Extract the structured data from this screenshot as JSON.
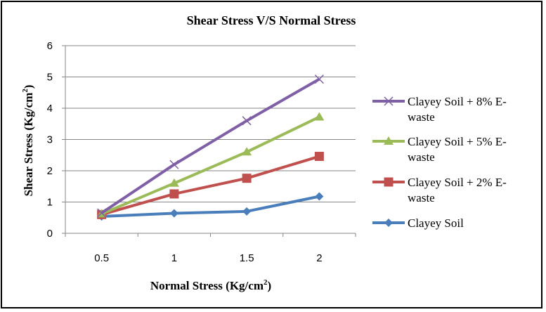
{
  "chart_data": {
    "type": "line",
    "title": "Shear Stress V/S Normal Stress",
    "xlabel": "Normal Stress (Kg/cm",
    "xlabel_sup": "2",
    "xlabel_end": ")",
    "ylabel": "Shear Stress (Kg/cm",
    "ylabel_sup": "2",
    "ylabel_end": ")",
    "x": [
      0.5,
      1,
      1.5,
      2
    ],
    "x_tick_labels": [
      "0.5",
      "1",
      "1.5",
      "2"
    ],
    "ylim": [
      0,
      6
    ],
    "y_ticks": [
      0,
      1,
      2,
      3,
      4,
      5,
      6
    ],
    "grid": "horizontal",
    "legend_position": "right",
    "series": [
      {
        "name": "Clayey Soil + 8% E-waste",
        "legend_lines": [
          "Clayey Soil + 8% E-",
          "waste"
        ],
        "color": "#7f5fa5",
        "marker": "x",
        "values": [
          0.65,
          2.2,
          3.6,
          4.93
        ]
      },
      {
        "name": "Clayey Soil + 5% E-waste",
        "legend_lines": [
          "Clayey Soil + 5% E-",
          "waste"
        ],
        "color": "#9bbb59",
        "marker": "triangle",
        "values": [
          0.62,
          1.6,
          2.6,
          3.72
        ]
      },
      {
        "name": "Clayey Soil + 2% E-waste",
        "legend_lines": [
          "Clayey Soil + 2% E-",
          "waste"
        ],
        "color": "#c0504d",
        "marker": "square",
        "values": [
          0.6,
          1.26,
          1.76,
          2.46
        ]
      },
      {
        "name": "Clayey Soil",
        "legend_lines": [
          "Clayey Soil"
        ],
        "color": "#4a7ebb",
        "marker": "diamond",
        "values": [
          0.54,
          0.64,
          0.7,
          1.18
        ]
      }
    ]
  }
}
